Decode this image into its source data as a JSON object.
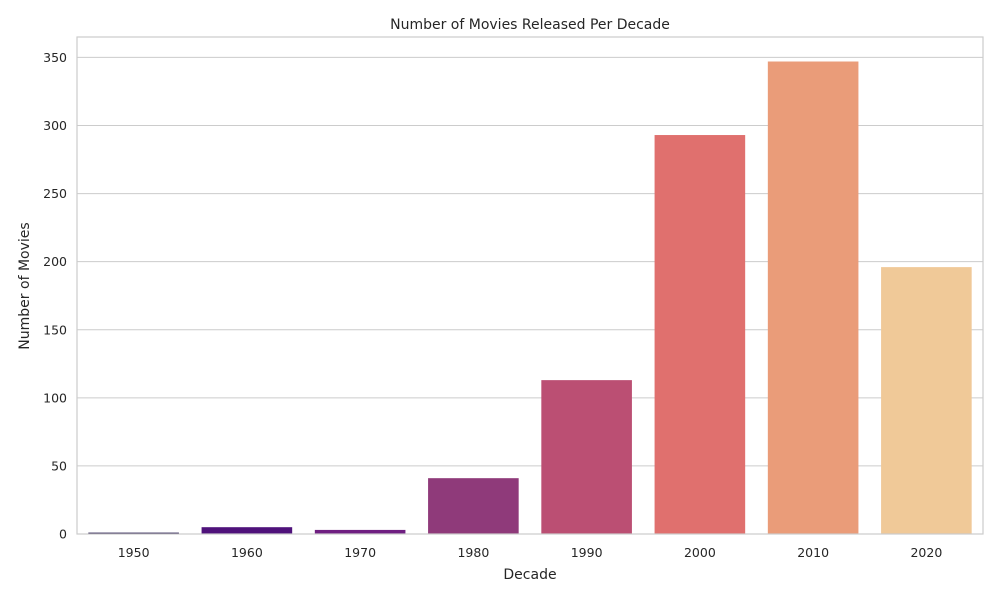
{
  "chart_data": {
    "type": "bar",
    "title": "Number of Movies Released Per Decade",
    "xlabel": "Decade",
    "ylabel": "Number of Movies",
    "categories": [
      "1950",
      "1960",
      "1970",
      "1980",
      "1990",
      "2000",
      "2010",
      "2020"
    ],
    "values": [
      1,
      5,
      3,
      41,
      113,
      293,
      347,
      196
    ],
    "colors": [
      "#1c1044",
      "#4f127b",
      "#6f1f81",
      "#8f3a7a",
      "#bb4f73",
      "#e0706e",
      "#ea9c79",
      "#f0c998"
    ],
    "ylim": [
      0,
      365
    ],
    "yticks": [
      0,
      50,
      100,
      150,
      200,
      250,
      300,
      350
    ],
    "grid": true,
    "legend": "none"
  }
}
